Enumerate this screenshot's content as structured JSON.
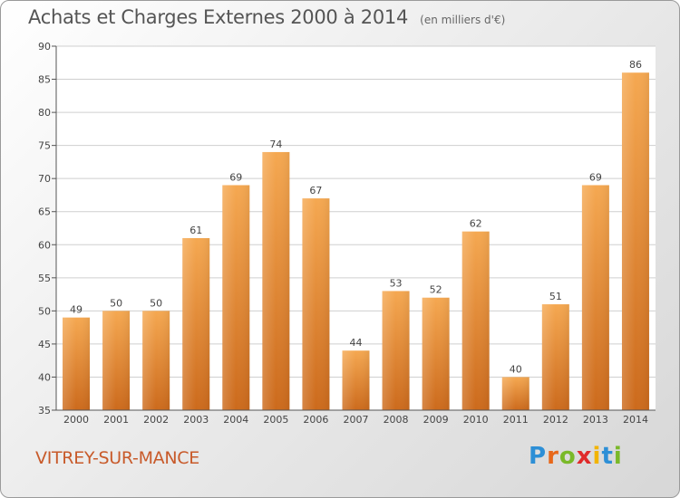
{
  "title": "Achats et Charges Externes 2000 à 2014",
  "unit": "(en milliers d'€)",
  "commune": "VITREY-SUR-MANCE",
  "brand": {
    "letters": [
      "P",
      "r",
      "o",
      "x",
      "i",
      "t",
      "i"
    ],
    "colors": [
      "#2d8fd6",
      "#e8681a",
      "#7ab929",
      "#e02a2a",
      "#f2b400",
      "#2d8fd6",
      "#7ab929"
    ]
  },
  "colors": {
    "bar_top": "#f5a851",
    "bar_bottom": "#cc6a1c",
    "grid": "#cfcfcf",
    "axis": "#555555"
  },
  "chart_data": {
    "type": "bar",
    "categories": [
      "2000",
      "2001",
      "2002",
      "2003",
      "2004",
      "2005",
      "2006",
      "2007",
      "2008",
      "2009",
      "2010",
      "2011",
      "2012",
      "2013",
      "2014"
    ],
    "values": [
      49,
      50,
      50,
      61,
      69,
      74,
      67,
      44,
      53,
      52,
      62,
      40,
      51,
      69,
      86
    ],
    "value_labels": [
      "49",
      "50",
      "50",
      "61",
      "69",
      "74",
      "67",
      "44",
      "53",
      "52",
      "62",
      "40",
      "51",
      "69",
      "86"
    ],
    "ylim": [
      35,
      90
    ],
    "yticks": [
      35,
      40,
      45,
      50,
      55,
      60,
      65,
      70,
      75,
      80,
      85,
      90
    ],
    "ytick_labels": [
      "35",
      "40",
      "45",
      "50",
      "55",
      "60",
      "65",
      "70",
      "75",
      "80",
      "85",
      "90"
    ],
    "grid": true,
    "legend": "none"
  }
}
